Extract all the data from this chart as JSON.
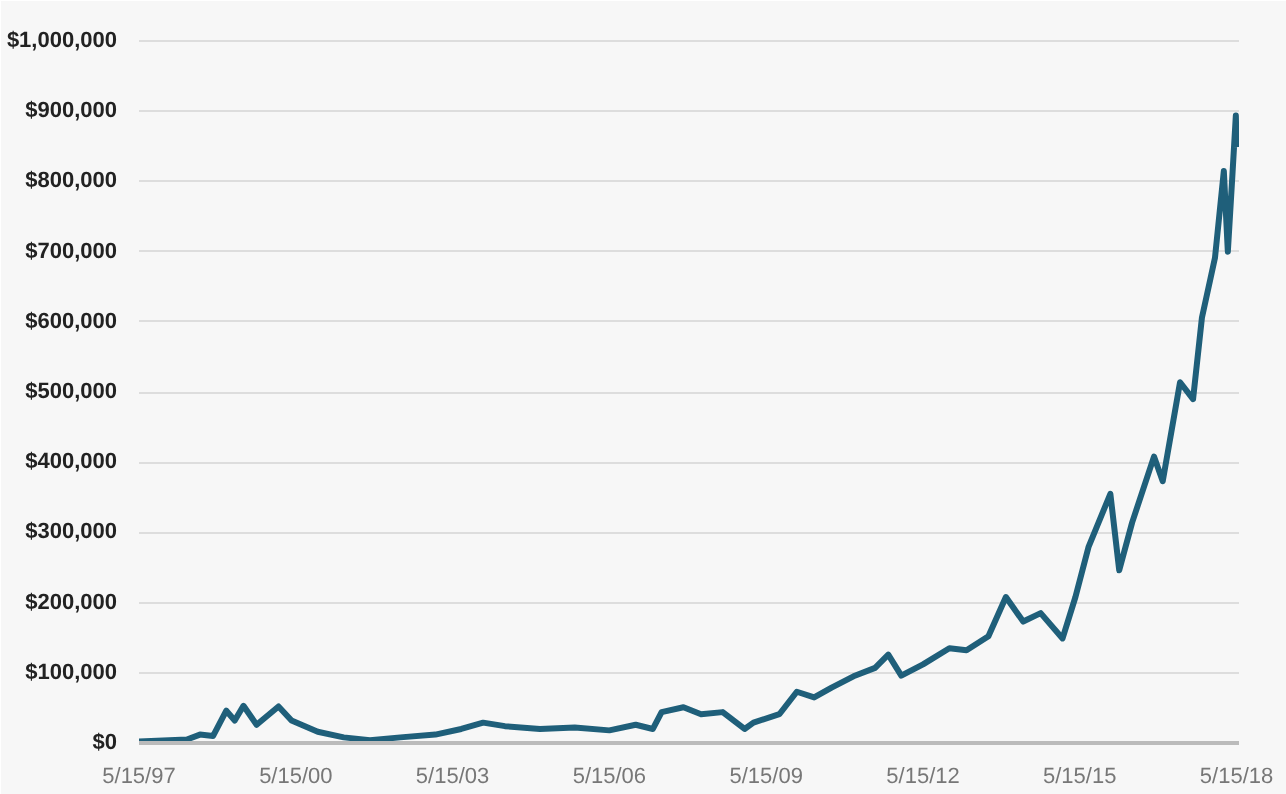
{
  "chart_data": {
    "type": "line",
    "x": [
      "1997-05-15",
      "1998-04",
      "1998-07",
      "1998-10",
      "1999-01",
      "1999-03",
      "1999-05",
      "1999-08",
      "2000-01",
      "2000-04",
      "2000-10",
      "2001-04",
      "2001-10",
      "2002-05",
      "2003-01",
      "2003-07",
      "2003-12",
      "2004-05",
      "2005-01",
      "2005-09",
      "2006-05",
      "2006-11",
      "2007-03",
      "2007-05",
      "2007-10",
      "2008-02",
      "2008-07",
      "2008-12",
      "2009-02",
      "2009-08",
      "2009-12",
      "2010-04",
      "2010-08",
      "2011-01",
      "2011-06",
      "2011-09",
      "2011-12",
      "2012-05",
      "2012-11",
      "2013-03",
      "2013-08",
      "2013-12",
      "2014-04",
      "2014-08",
      "2015-01",
      "2015-04",
      "2015-07",
      "2015-12",
      "2016-02",
      "2016-05",
      "2016-10",
      "2016-12",
      "2017-04",
      "2017-07",
      "2017-09",
      "2017-11",
      "2017-12",
      "2018-02",
      "2018-03",
      "2018-04",
      "2018-05-10",
      "2018-05-15"
    ],
    "series": [
      {
        "color": "#1f5f7a",
        "values": [
          2000,
          5000,
          12000,
          10000,
          46000,
          32000,
          53000,
          26000,
          52000,
          32000,
          16000,
          8000,
          4000,
          8000,
          12000,
          20000,
          29000,
          24000,
          20000,
          22000,
          18000,
          26000,
          20000,
          44000,
          51000,
          41000,
          44000,
          20000,
          29000,
          41000,
          73000,
          65000,
          79000,
          95000,
          107000,
          126000,
          96000,
          112000,
          135000,
          132000,
          152000,
          208000,
          173000,
          185000,
          149000,
          208000,
          279000,
          355000,
          246000,
          314000,
          408000,
          373000,
          514000,
          490000,
          606000,
          663000,
          691000,
          815000,
          700000,
          806000,
          894000,
          849000
        ]
      }
    ],
    "xlim": [
      "1997-05-15",
      "2018-06-01"
    ],
    "xticks": [
      {
        "value": "1997-05-15",
        "label": "5/15/97"
      },
      {
        "value": "2000-05-15",
        "label": "5/15/00"
      },
      {
        "value": "2003-05-15",
        "label": "5/15/03"
      },
      {
        "value": "2006-05-15",
        "label": "5/15/06"
      },
      {
        "value": "2009-05-15",
        "label": "5/15/09"
      },
      {
        "value": "2012-05-15",
        "label": "5/15/12"
      },
      {
        "value": "2015-05-15",
        "label": "5/15/15"
      },
      {
        "value": "2018-05-15",
        "label": "5/15/18"
      }
    ],
    "ylim": [
      0,
      1040000
    ],
    "yticks": [
      {
        "value": 0,
        "label": "$0"
      },
      {
        "value": 100000,
        "label": "$100,000"
      },
      {
        "value": 200000,
        "label": "$200,000"
      },
      {
        "value": 300000,
        "label": "$300,000"
      },
      {
        "value": 400000,
        "label": "$400,000"
      },
      {
        "value": 500000,
        "label": "$500,000"
      },
      {
        "value": 600000,
        "label": "$600,000"
      },
      {
        "value": 700000,
        "label": "$700,000"
      },
      {
        "value": 800000,
        "label": "$800,000"
      },
      {
        "value": 900000,
        "label": "$900,000"
      },
      {
        "value": 1000000,
        "label": "$1,000,000"
      }
    ],
    "grid": "y",
    "marker": "none",
    "line_style": "solid"
  }
}
